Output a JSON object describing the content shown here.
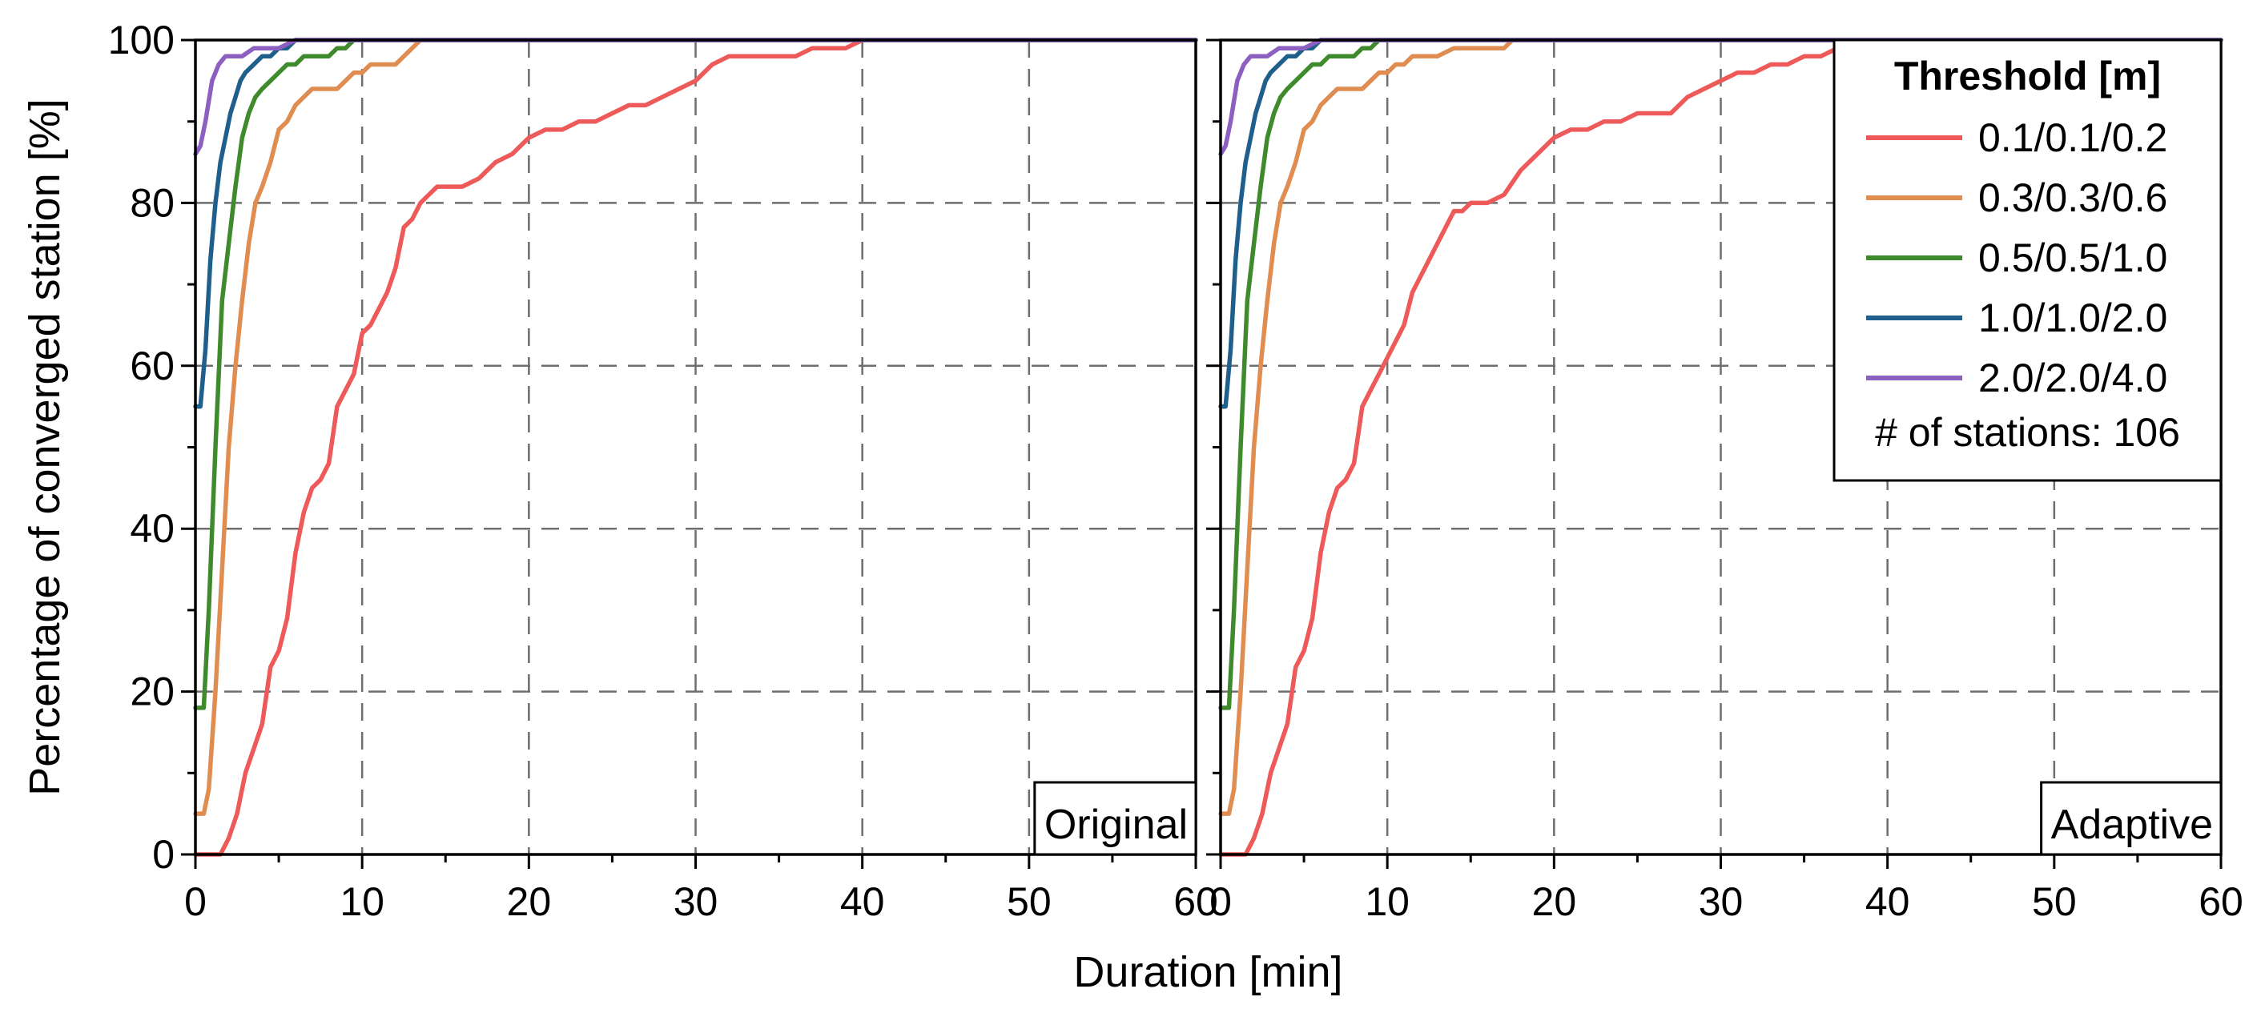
{
  "chart_data": {
    "type": "line",
    "xlabel": "Duration [min]",
    "ylabel": "Percentage of converged station [%]",
    "xlim": [
      0,
      60
    ],
    "ylim": [
      0,
      100
    ],
    "x_ticks": [
      "0",
      "10",
      "20",
      "30",
      "40",
      "50",
      "60"
    ],
    "y_ticks": [
      "0",
      "20",
      "40",
      "60",
      "80",
      "100"
    ],
    "grid": true,
    "legend": {
      "title": "Threshold [m]",
      "placement": "top-right of right panel",
      "note": "# of stations: 106"
    },
    "panels": [
      {
        "label": "Original",
        "series": [
          {
            "name": "0.1/0.1/0.2",
            "color": "#ee5a5a",
            "x": [
              0,
              1.5,
              2,
              2.5,
              3,
              3.5,
              4,
              4.5,
              5,
              5.5,
              6,
              6.5,
              7,
              7.5,
              8,
              8.5,
              9,
              9.5,
              10,
              10.5,
              11,
              11.5,
              12,
              12.5,
              13,
              13.5,
              14,
              14.5,
              15,
              16,
              17,
              18,
              19,
              20,
              21,
              22,
              23,
              24,
              25,
              26,
              27,
              28,
              29,
              30,
              31,
              32,
              33,
              34,
              35,
              36,
              37,
              38,
              39,
              40,
              60
            ],
            "y": [
              0,
              0,
              2,
              5,
              10,
              13,
              16,
              23,
              25,
              29,
              37,
              42,
              45,
              46,
              48,
              55,
              57,
              59,
              64,
              65,
              67,
              69,
              72,
              77,
              78,
              80,
              81,
              82,
              82,
              82,
              83,
              85,
              86,
              88,
              89,
              89,
              90,
              90,
              91,
              92,
              92,
              93,
              94,
              95,
              97,
              98,
              98,
              98,
              98,
              98,
              99,
              99,
              99,
              100,
              100
            ]
          },
          {
            "name": "0.3/0.3/0.6",
            "color": "#e08d52",
            "x": [
              0,
              0.5,
              0.8,
              1.2,
              1.6,
              2.0,
              2.4,
              2.8,
              3.2,
              3.6,
              4.0,
              4.5,
              5.0,
              5.5,
              6.0,
              6.5,
              7,
              7.5,
              8,
              8.5,
              9,
              9.5,
              10,
              10.5,
              11,
              11.5,
              12,
              12.5,
              13,
              13.5,
              14,
              60
            ],
            "y": [
              5,
              5,
              8,
              20,
              35,
              50,
              60,
              68,
              75,
              80,
              82,
              85,
              89,
              90,
              92,
              93,
              94,
              94,
              94,
              94,
              95,
              96,
              96,
              97,
              97,
              97,
              97,
              98,
              99,
              100,
              100,
              100
            ]
          },
          {
            "name": "0.5/0.5/1.0",
            "color": "#3f8a2c",
            "x": [
              0,
              0.5,
              0.8,
              1.2,
              1.6,
              2.0,
              2.4,
              2.8,
              3.2,
              3.6,
              4.0,
              4.5,
              5,
              5.5,
              6,
              6.5,
              7,
              7.5,
              8,
              8.5,
              9,
              9.5,
              60
            ],
            "y": [
              18,
              18,
              30,
              50,
              68,
              75,
              82,
              88,
              91,
              93,
              94,
              95,
              96,
              97,
              97,
              98,
              98,
              98,
              98,
              99,
              99,
              100,
              100
            ]
          },
          {
            "name": "1.0/1.0/2.0",
            "color": "#1f5f8b",
            "x": [
              0,
              0.3,
              0.6,
              0.9,
              1.2,
              1.5,
              1.8,
              2.1,
              2.4,
              2.7,
              3.0,
              3.5,
              4.0,
              4.5,
              5.0,
              5.5,
              6.0,
              60
            ],
            "y": [
              55,
              55,
              62,
              73,
              80,
              85,
              88,
              91,
              93,
              95,
              96,
              97,
              98,
              98,
              99,
              99,
              100,
              100
            ]
          },
          {
            "name": "2.0/2.0/4.0",
            "color": "#8c5fc0",
            "x": [
              0,
              0.3,
              0.6,
              1.0,
              1.4,
              1.8,
              2.2,
              2.8,
              3.5,
              4.2,
              5.0,
              6.0,
              60
            ],
            "y": [
              86,
              87,
              90,
              95,
              97,
              98,
              98,
              98,
              99,
              99,
              99,
              100,
              100
            ]
          }
        ]
      },
      {
        "label": "Adaptive",
        "series": [
          {
            "name": "0.1/0.1/0.2",
            "color": "#ee5a5a",
            "x": [
              0,
              1.5,
              2,
              2.5,
              3,
              3.5,
              4,
              4.5,
              5,
              5.5,
              6,
              6.5,
              7,
              7.5,
              8,
              8.5,
              9,
              9.5,
              10,
              10.5,
              11,
              11.5,
              12,
              12.5,
              13,
              13.5,
              14,
              14.5,
              15,
              16,
              17,
              18,
              19,
              20,
              21,
              22,
              23,
              24,
              25,
              26,
              27,
              28,
              29,
              30,
              31,
              32,
              33,
              34,
              35,
              36,
              37,
              38,
              60
            ],
            "y": [
              0,
              0,
              2,
              5,
              10,
              13,
              16,
              23,
              25,
              29,
              37,
              42,
              45,
              46,
              48,
              55,
              57,
              59,
              61,
              63,
              65,
              69,
              71,
              73,
              75,
              77,
              79,
              79,
              80,
              80,
              81,
              84,
              86,
              88,
              89,
              89,
              90,
              90,
              91,
              91,
              91,
              93,
              94,
              95,
              96,
              96,
              97,
              97,
              98,
              98,
              99,
              100,
              100
            ]
          },
          {
            "name": "0.3/0.3/0.6",
            "color": "#e08d52",
            "x": [
              0,
              0.5,
              0.8,
              1.2,
              1.6,
              2.0,
              2.4,
              2.8,
              3.2,
              3.6,
              4.0,
              4.5,
              5.0,
              5.5,
              6.0,
              6.5,
              7,
              7.5,
              8,
              8.5,
              9,
              9.5,
              10,
              10.5,
              11,
              11.5,
              12,
              13,
              14,
              15,
              16,
              17,
              17.5,
              60
            ],
            "y": [
              5,
              5,
              8,
              20,
              35,
              50,
              60,
              68,
              75,
              80,
              82,
              85,
              89,
              90,
              92,
              93,
              94,
              94,
              94,
              94,
              95,
              96,
              96,
              97,
              97,
              98,
              98,
              98,
              99,
              99,
              99,
              99,
              100,
              100
            ]
          },
          {
            "name": "0.5/0.5/1.0",
            "color": "#3f8a2c",
            "x": [
              0,
              0.5,
              0.8,
              1.2,
              1.6,
              2.0,
              2.4,
              2.8,
              3.2,
              3.6,
              4.0,
              4.5,
              5,
              5.5,
              6,
              6.5,
              7,
              7.5,
              8,
              8.5,
              9,
              9.5,
              60
            ],
            "y": [
              18,
              18,
              30,
              50,
              68,
              75,
              82,
              88,
              91,
              93,
              94,
              95,
              96,
              97,
              97,
              98,
              98,
              98,
              98,
              99,
              99,
              100,
              100
            ]
          },
          {
            "name": "1.0/1.0/2.0",
            "color": "#1f5f8b",
            "x": [
              0,
              0.3,
              0.6,
              0.9,
              1.2,
              1.5,
              1.8,
              2.1,
              2.4,
              2.7,
              3.0,
              3.5,
              4.0,
              4.5,
              5.0,
              5.5,
              6.0,
              60
            ],
            "y": [
              55,
              55,
              62,
              73,
              80,
              85,
              88,
              91,
              93,
              95,
              96,
              97,
              98,
              98,
              99,
              99,
              100,
              100
            ]
          },
          {
            "name": "2.0/2.0/4.0",
            "color": "#8c5fc0",
            "x": [
              0,
              0.3,
              0.6,
              1.0,
              1.4,
              1.8,
              2.2,
              2.8,
              3.5,
              4.2,
              5.0,
              6.0,
              60
            ],
            "y": [
              86,
              87,
              90,
              95,
              97,
              98,
              98,
              98,
              99,
              99,
              99,
              100,
              100
            ]
          }
        ]
      }
    ]
  }
}
